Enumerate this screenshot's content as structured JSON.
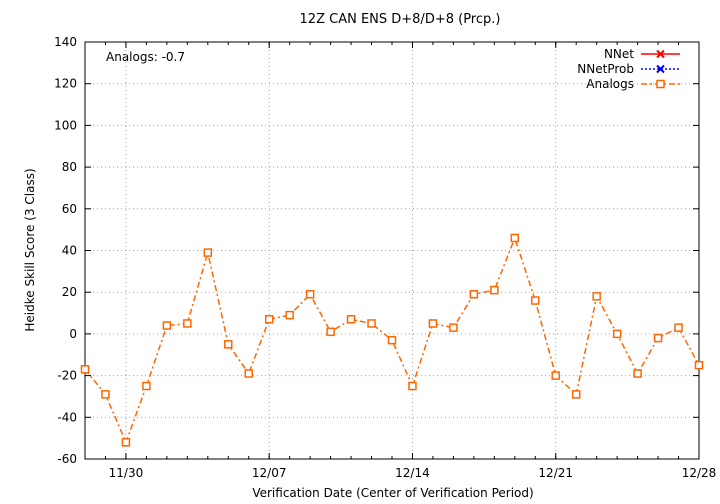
{
  "chart_data": {
    "type": "line",
    "title": "12Z CAN ENS D+8/D+8 (Prcp.)",
    "xlabel": "Verification Date (Center of Verification Period)",
    "ylabel": "Heidke Skill Score (3 Class)",
    "annotation": "Analogs: -0.7",
    "ylim": [
      -60,
      140
    ],
    "yticks": [
      -60,
      -40,
      -20,
      0,
      20,
      40,
      60,
      80,
      100,
      120,
      140
    ],
    "xlim": [
      -2,
      28
    ],
    "xticks": [
      {
        "label": "11/30",
        "x": 0
      },
      {
        "label": "12/07",
        "x": 7
      },
      {
        "label": "12/14",
        "x": 14
      },
      {
        "label": "12/21",
        "x": 21
      },
      {
        "label": "12/28",
        "x": 28
      }
    ],
    "grid": true,
    "legend_position": "top-right",
    "series": [
      {
        "name": "NNet",
        "color": "#ff0000",
        "marker": "x",
        "dash": "solid",
        "values": []
      },
      {
        "name": "NNetProb",
        "color": "#0000ff",
        "marker": "x",
        "dash": "dotted",
        "values": []
      },
      {
        "name": "Analogs",
        "color": "#ff6600",
        "marker": "square",
        "dash": "dashdot",
        "x": [
          -2,
          -1,
          0,
          1,
          2,
          3,
          4,
          5,
          6,
          7,
          8,
          9,
          10,
          11,
          12,
          13,
          14,
          15,
          16,
          17,
          18,
          19,
          20,
          21,
          22,
          23,
          24,
          25,
          26,
          27,
          28
        ],
        "values": [
          -17,
          -29,
          -52,
          -25,
          4,
          5,
          39,
          -5,
          -19,
          7,
          9,
          19,
          1,
          7,
          5,
          -3,
          -25,
          5,
          3,
          19,
          21,
          46,
          16,
          -20,
          -29,
          18,
          0,
          -19,
          -2,
          3,
          -15
        ]
      }
    ]
  }
}
